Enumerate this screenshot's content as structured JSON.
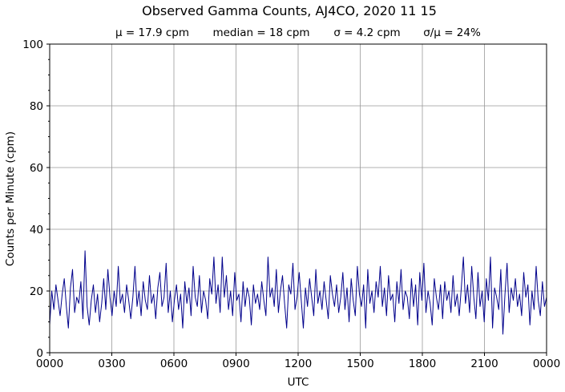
{
  "chart_data": {
    "type": "line",
    "title": "Observed Gamma Counts, AJ4CO, 2020 11 15",
    "subtitle": {
      "mean": "μ = 17.9 cpm",
      "median": "median = 18 cpm",
      "sigma": "σ = 4.2 cpm",
      "cv": "σ/μ = 24%"
    },
    "xlabel": "UTC",
    "ylabel": "Counts per Minute (cpm)",
    "xticks": [
      "0000",
      "0300",
      "0600",
      "0900",
      "1200",
      "1500",
      "1800",
      "2100",
      "0000"
    ],
    "yticks": [
      0,
      20,
      40,
      60,
      80,
      100
    ],
    "ylim": [
      0,
      100
    ],
    "y_minor_step": 5,
    "grid": true,
    "line_color": "#00008b",
    "series": [
      {
        "values": [
          9,
          20,
          14,
          22,
          17,
          12,
          19,
          24,
          15,
          8,
          21,
          27,
          13,
          18,
          16,
          23,
          11,
          33,
          15,
          9,
          17,
          22,
          13,
          19,
          10,
          16,
          24,
          14,
          27,
          18,
          12,
          20,
          15,
          28,
          16,
          19,
          13,
          22,
          17,
          11,
          18,
          28,
          15,
          20,
          12,
          23,
          17,
          14,
          25,
          16,
          19,
          11,
          21,
          26,
          15,
          18,
          29,
          13,
          20,
          10,
          17,
          22,
          14,
          19,
          8,
          23,
          16,
          21,
          12,
          28,
          18,
          15,
          25,
          13,
          20,
          17,
          11,
          24,
          19,
          31,
          16,
          22,
          13,
          31,
          18,
          25,
          14,
          20,
          12,
          26,
          17,
          19,
          10,
          23,
          15,
          21,
          18,
          9,
          22,
          16,
          19,
          14,
          23,
          17,
          12,
          31,
          18,
          21,
          15,
          27,
          13,
          20,
          25,
          16,
          8,
          22,
          19,
          29,
          14,
          18,
          26,
          17,
          8,
          21,
          15,
          24,
          18,
          12,
          27,
          16,
          20,
          14,
          23,
          17,
          11,
          25,
          19,
          15,
          22,
          13,
          18,
          26,
          14,
          21,
          10,
          24,
          17,
          12,
          28,
          19,
          15,
          22,
          8,
          27,
          16,
          20,
          13,
          23,
          18,
          28,
          15,
          21,
          12,
          25,
          17,
          19,
          10,
          23,
          16,
          27,
          14,
          20,
          18,
          11,
          24,
          15,
          22,
          9,
          26,
          17,
          29,
          13,
          20,
          16,
          9,
          24,
          18,
          14,
          22,
          11,
          23,
          17,
          20,
          13,
          25,
          15,
          19,
          12,
          21,
          31,
          16,
          22,
          13,
          28,
          18,
          11,
          26,
          15,
          20,
          10,
          24,
          17,
          31,
          8,
          21,
          18,
          14,
          27,
          6,
          19,
          29,
          13,
          21,
          17,
          24,
          15,
          19,
          12,
          26,
          18,
          22,
          9,
          20,
          14,
          28,
          17,
          12,
          23,
          15,
          18
        ]
      }
    ]
  }
}
